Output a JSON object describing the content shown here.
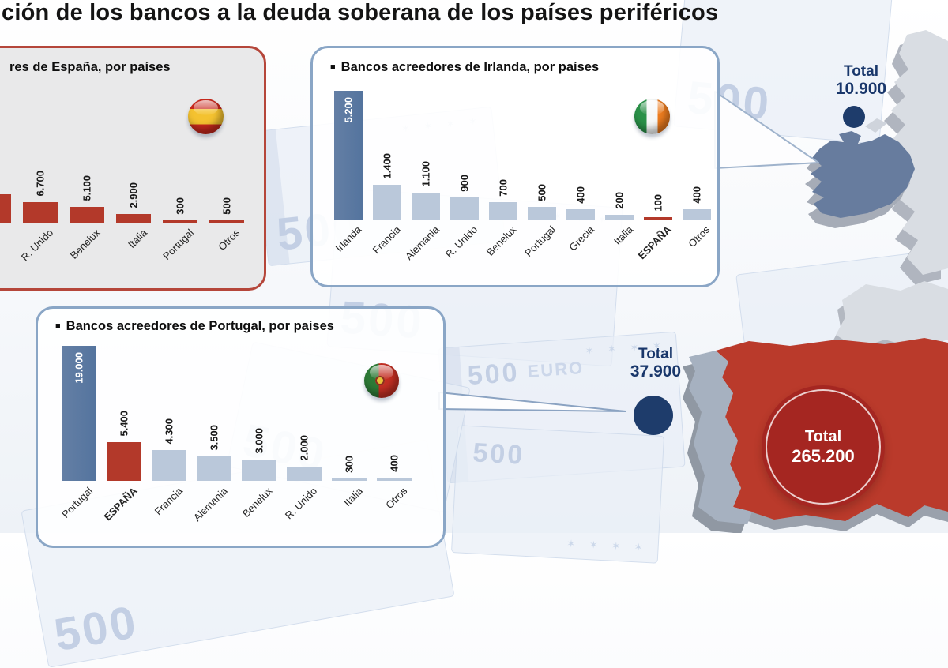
{
  "title": {
    "text": "ción de los bancos a la deuda soberana de los países periféricos"
  },
  "background": {
    "banknote_text": "500",
    "banknote_currency": "EURO",
    "stars": "✶ ✶ ✶ ✶"
  },
  "panels": {
    "spain": {
      "bullet": "",
      "header": "res de España, por países",
      "flag": "spain",
      "bars": [
        {
          "label": "",
          "display": "",
          "value": null,
          "style": "red",
          "clipped": true
        },
        {
          "label": "R. Unido",
          "display": "6.700",
          "value": 6700,
          "style": "red"
        },
        {
          "label": "Benelux",
          "display": "5.100",
          "value": 5100,
          "style": "red"
        },
        {
          "label": "Italia",
          "display": "2.900",
          "value": 2900,
          "style": "red"
        },
        {
          "label": "Portugal",
          "display": "300",
          "value": 300,
          "style": "red",
          "thin": true
        },
        {
          "label": "Otros",
          "display": "500",
          "value": 500,
          "style": "red",
          "thin": true
        }
      ]
    },
    "ireland": {
      "bullet": "■",
      "header": "Bancos acreedores de Irlanda, por países",
      "flag": "ireland",
      "bars": [
        {
          "label": "Irlanda",
          "display": "5.200",
          "value": 5200,
          "style": "dark",
          "value_inside": true
        },
        {
          "label": "Francia",
          "display": "1.400",
          "value": 1400,
          "style": "light"
        },
        {
          "label": "Alemania",
          "display": "1.100",
          "value": 1100,
          "style": "light"
        },
        {
          "label": "R. Unido",
          "display": "900",
          "value": 900,
          "style": "light"
        },
        {
          "label": "Benelux",
          "display": "700",
          "value": 700,
          "style": "light"
        },
        {
          "label": "Portugal",
          "display": "500",
          "value": 500,
          "style": "light"
        },
        {
          "label": "Grecia",
          "display": "400",
          "value": 400,
          "style": "light"
        },
        {
          "label": "Italia",
          "display": "200",
          "value": 200,
          "style": "light"
        },
        {
          "label": "ESPAÑA",
          "display": "100",
          "value": 100,
          "style": "red",
          "thin": true,
          "bold_label": true
        },
        {
          "label": "Otros",
          "display": "400",
          "value": 400,
          "style": "light"
        }
      ]
    },
    "portugal": {
      "bullet": "■",
      "header": "Bancos acreedores de Portugal, por paises",
      "flag": "portugal",
      "bars": [
        {
          "label": "Portugal",
          "display": "19.000",
          "value": 19000,
          "style": "dark",
          "value_inside": true
        },
        {
          "label": "ESPAÑA",
          "display": "5.400",
          "value": 5400,
          "style": "red",
          "bold_label": true
        },
        {
          "label": "Francia",
          "display": "4.300",
          "value": 4300,
          "style": "light"
        },
        {
          "label": "Alemania",
          "display": "3.500",
          "value": 3500,
          "style": "light"
        },
        {
          "label": "Benelux",
          "display": "3.000",
          "value": 3000,
          "style": "light"
        },
        {
          "label": "R. Unido",
          "display": "2.000",
          "value": 2000,
          "style": "light"
        },
        {
          "label": "Italia",
          "display": "300",
          "value": 300,
          "style": "light",
          "thin": true
        },
        {
          "label": "Otros",
          "display": "400",
          "value": 400,
          "style": "light",
          "thin": true
        }
      ]
    }
  },
  "totals": {
    "ireland": {
      "label": "Total",
      "value": "10.900"
    },
    "portugal": {
      "label": "Total",
      "value": "37.900"
    },
    "spain": {
      "label": "Total",
      "value": "265.200"
    }
  },
  "colors": {
    "bar_dark": "#5b7ba3",
    "bar_light": "#bac8da",
    "bar_red": "#b3392a",
    "panel_border_red": "#b5463a",
    "panel_border_blue": "#8aa6c6",
    "total_text": "#19376b",
    "dot": "#1e3c6b",
    "map_spain_red": "#ba3a2b",
    "spain_circle_red": "#a52621",
    "map_grey": "#d9dde3",
    "map_ireland_blue": "#677c9e"
  },
  "chart_data": [
    {
      "type": "bar",
      "title": "Bancos acreedores de España, por países",
      "categories": [
        "R. Unido",
        "Benelux",
        "Italia",
        "Portugal",
        "Otros"
      ],
      "values": [
        6700,
        5100,
        2900,
        300,
        500
      ],
      "total": 265200,
      "note": "leftmost bar clipped off-screen; values in millions of euros",
      "bar_color": "#b3392a",
      "legend": "none",
      "grid": false
    },
    {
      "type": "bar",
      "title": "Bancos acreedores de Irlanda, por países",
      "categories": [
        "Irlanda",
        "Francia",
        "Alemania",
        "R. Unido",
        "Benelux",
        "Portugal",
        "Grecia",
        "Italia",
        "ESPAÑA",
        "Otros"
      ],
      "values": [
        5200,
        1400,
        1100,
        900,
        700,
        500,
        400,
        200,
        100,
        400
      ],
      "total": 10900,
      "highlight": {
        "Irlanda": "#5b7ba3",
        "ESPAÑA": "#b3392a"
      },
      "legend": "none",
      "grid": false
    },
    {
      "type": "bar",
      "title": "Bancos acreedores de Portugal, por paises",
      "categories": [
        "Portugal",
        "ESPAÑA",
        "Francia",
        "Alemania",
        "Benelux",
        "R. Unido",
        "Italia",
        "Otros"
      ],
      "values": [
        19000,
        5400,
        4300,
        3500,
        3000,
        2000,
        300,
        400
      ],
      "total": 37900,
      "highlight": {
        "Portugal": "#5b7ba3",
        "ESPAÑA": "#b3392a"
      },
      "legend": "none",
      "grid": false
    }
  ]
}
